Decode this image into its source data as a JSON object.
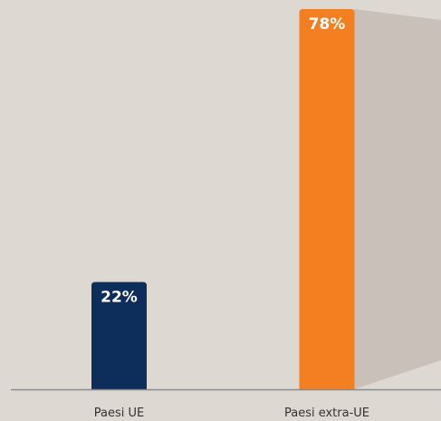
{
  "chart_data": {
    "type": "bar",
    "categories": [
      "Paesi UE",
      "Paesi extra-UE"
    ],
    "values": [
      22,
      78
    ],
    "value_labels": [
      "22%",
      "78%"
    ],
    "colors": [
      "#0d2d5a",
      "#f47f20"
    ]
  }
}
